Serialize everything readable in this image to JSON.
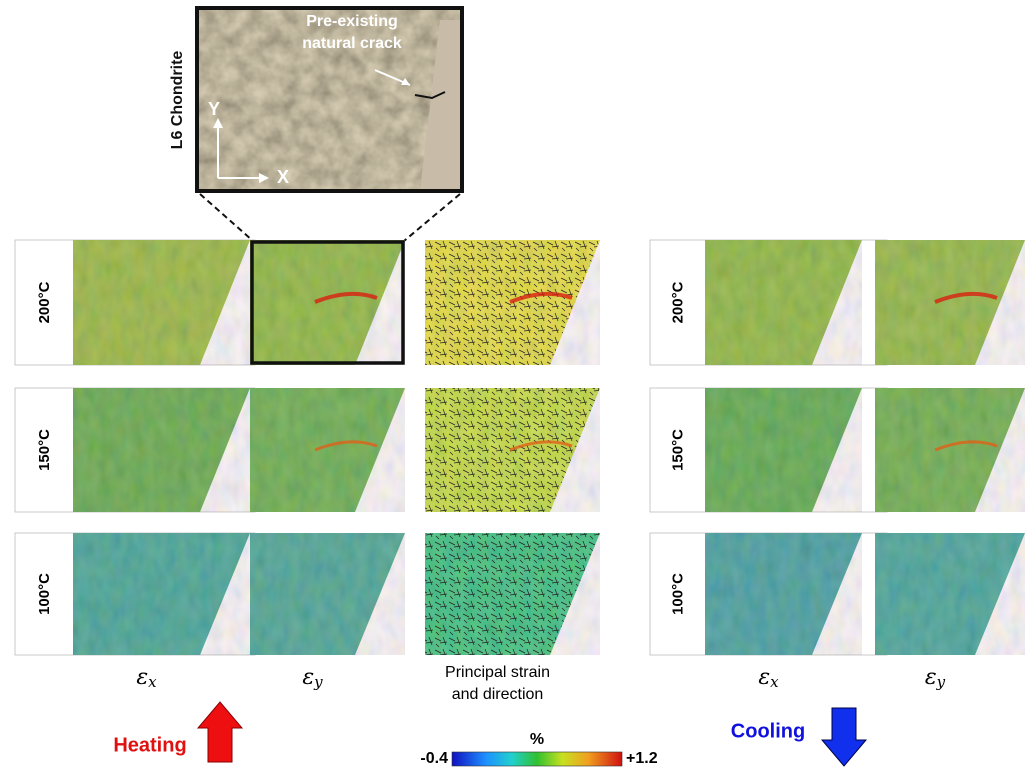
{
  "inset": {
    "label": "L6 Chondrite",
    "annotation": [
      "Pre-existing",
      "natural crack"
    ],
    "axes": [
      "Y",
      "X"
    ]
  },
  "heating": {
    "label": "Heating",
    "rows": [
      "200°C",
      "150°C",
      "100°C"
    ],
    "columns": [
      {
        "symbol": "ε",
        "subscript": "x"
      },
      {
        "symbol": "ε",
        "subscript": "y"
      },
      [
        "Principal strain",
        "and direction"
      ]
    ]
  },
  "cooling": {
    "label": "Cooling",
    "rows": [
      "200°C",
      "150°C",
      "100°C"
    ],
    "columns": [
      {
        "symbol": "ε",
        "subscript": "x"
      },
      {
        "symbol": "ε",
        "subscript": "y"
      }
    ]
  },
  "colorbar": {
    "unit": "%",
    "ticks": [
      {
        "value": -0.4,
        "label": "-0.4"
      },
      {
        "value": 1.2,
        "label": "+1.2"
      }
    ]
  }
}
